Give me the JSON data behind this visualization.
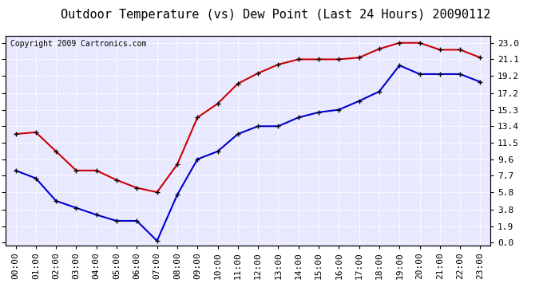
{
  "title": "Outdoor Temperature (vs) Dew Point (Last 24 Hours) 20090112",
  "copyright": "Copyright 2009 Cartronics.com",
  "x_labels": [
    "00:00",
    "01:00",
    "02:00",
    "03:00",
    "04:00",
    "05:00",
    "06:00",
    "07:00",
    "08:00",
    "09:00",
    "10:00",
    "11:00",
    "12:00",
    "13:00",
    "14:00",
    "15:00",
    "16:00",
    "17:00",
    "18:00",
    "19:00",
    "20:00",
    "21:00",
    "22:00",
    "23:00"
  ],
  "y_ticks": [
    0.0,
    1.9,
    3.8,
    5.8,
    7.7,
    9.6,
    11.5,
    13.4,
    15.3,
    17.2,
    19.2,
    21.1,
    23.0
  ],
  "ylim": [
    -0.3,
    23.8
  ],
  "temp_red": [
    12.5,
    12.7,
    10.5,
    8.3,
    8.3,
    7.2,
    6.3,
    5.8,
    9.0,
    14.4,
    16.0,
    18.3,
    19.5,
    20.5,
    21.1,
    21.1,
    21.1,
    21.3,
    22.3,
    23.0,
    23.0,
    22.2,
    22.2,
    21.3
  ],
  "temp_blue": [
    8.3,
    7.4,
    4.8,
    4.0,
    3.2,
    2.5,
    2.5,
    0.2,
    5.5,
    9.6,
    10.5,
    12.5,
    13.4,
    13.4,
    14.4,
    15.0,
    15.3,
    16.3,
    17.4,
    20.4,
    19.4,
    19.4,
    19.4,
    18.5
  ],
  "red_color": "#cc0000",
  "blue_color": "#0000cc",
  "marker_color": "#000000",
  "bg_color": "#e8e8ff",
  "grid_color": "#ffffff",
  "title_fontsize": 11,
  "copyright_fontsize": 7,
  "tick_fontsize": 8,
  "fig_width": 6.9,
  "fig_height": 3.75,
  "dpi": 100
}
